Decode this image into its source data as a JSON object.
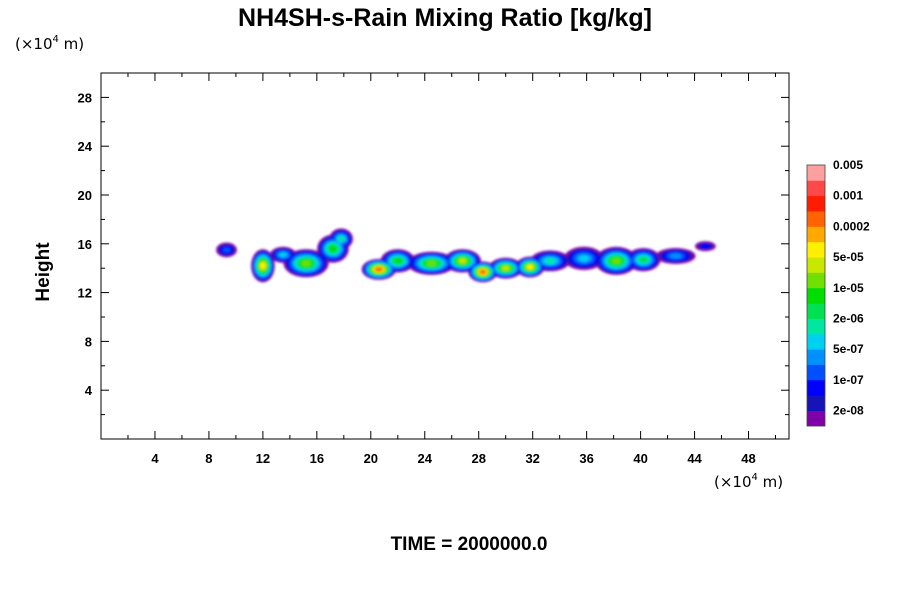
{
  "chart_data": {
    "type": "heatmap",
    "title": "NH4SH-s-Rain Mixing Ratio [kg/kg]",
    "ylabel": "Height",
    "x_unit": {
      "prefix": "(×10",
      "exp": "4",
      "suffix": " m)"
    },
    "y_unit": {
      "prefix": "(×10",
      "exp": "4",
      "suffix": " m)"
    },
    "xlim": [
      0,
      51
    ],
    "ylim": [
      0,
      30
    ],
    "x_ticks": [
      4,
      8,
      12,
      16,
      20,
      24,
      28,
      32,
      36,
      40,
      44,
      48
    ],
    "y_ticks": [
      4,
      8,
      12,
      16,
      20,
      24,
      28
    ],
    "x_minor_step": 2,
    "y_minor_step": 2,
    "time_label": "TIME = 2000000.0",
    "colorbar": {
      "colors": [
        "#7f00a8",
        "#1414b8",
        "#0000ff",
        "#0050ff",
        "#0090ff",
        "#00d0f0",
        "#00e8a0",
        "#00e050",
        "#00dd00",
        "#70e000",
        "#c8e800",
        "#ffef00",
        "#ffa800",
        "#ff6400",
        "#ff1c00",
        "#ff4848",
        "#ffa0a0"
      ],
      "labels": [
        "2e-08",
        "1e-07",
        "5e-07",
        "2e-06",
        "1e-05",
        "5e-05",
        "0.0002",
        "0.001",
        "0.005"
      ]
    },
    "cloud_cells": [
      {
        "x": 9.3,
        "y": 15.5,
        "rx": 0.7,
        "ry": 0.55,
        "peak": 3
      },
      {
        "x": 12.0,
        "y": 14.2,
        "rx": 0.8,
        "ry": 1.3,
        "peak": 11
      },
      {
        "x": 13.5,
        "y": 15.1,
        "rx": 0.9,
        "ry": 0.6,
        "peak": 5
      },
      {
        "x": 15.2,
        "y": 14.4,
        "rx": 1.6,
        "ry": 1.1,
        "peak": 9
      },
      {
        "x": 17.2,
        "y": 15.6,
        "rx": 1.1,
        "ry": 1.1,
        "peak": 8
      },
      {
        "x": 17.8,
        "y": 16.4,
        "rx": 0.8,
        "ry": 0.8,
        "peak": 6
      },
      {
        "x": 20.6,
        "y": 13.9,
        "rx": 1.2,
        "ry": 0.8,
        "peak": 13
      },
      {
        "x": 22.0,
        "y": 14.6,
        "rx": 1.2,
        "ry": 0.9,
        "peak": 8
      },
      {
        "x": 24.5,
        "y": 14.4,
        "rx": 1.7,
        "ry": 0.9,
        "peak": 9
      },
      {
        "x": 26.8,
        "y": 14.6,
        "rx": 1.3,
        "ry": 0.9,
        "peak": 10
      },
      {
        "x": 28.3,
        "y": 13.7,
        "rx": 1.0,
        "ry": 0.8,
        "peak": 13
      },
      {
        "x": 30.0,
        "y": 14.0,
        "rx": 1.2,
        "ry": 0.8,
        "peak": 10
      },
      {
        "x": 31.8,
        "y": 14.1,
        "rx": 1.0,
        "ry": 0.8,
        "peak": 11
      },
      {
        "x": 33.3,
        "y": 14.6,
        "rx": 1.4,
        "ry": 0.8,
        "peak": 6
      },
      {
        "x": 35.8,
        "y": 14.8,
        "rx": 1.4,
        "ry": 0.9,
        "peak": 5
      },
      {
        "x": 38.2,
        "y": 14.6,
        "rx": 1.5,
        "ry": 1.1,
        "peak": 9
      },
      {
        "x": 40.2,
        "y": 14.7,
        "rx": 1.2,
        "ry": 0.9,
        "peak": 7
      },
      {
        "x": 42.6,
        "y": 15.0,
        "rx": 1.4,
        "ry": 0.6,
        "peak": 4
      },
      {
        "x": 44.8,
        "y": 15.8,
        "rx": 0.7,
        "ry": 0.35,
        "peak": 2
      }
    ]
  }
}
